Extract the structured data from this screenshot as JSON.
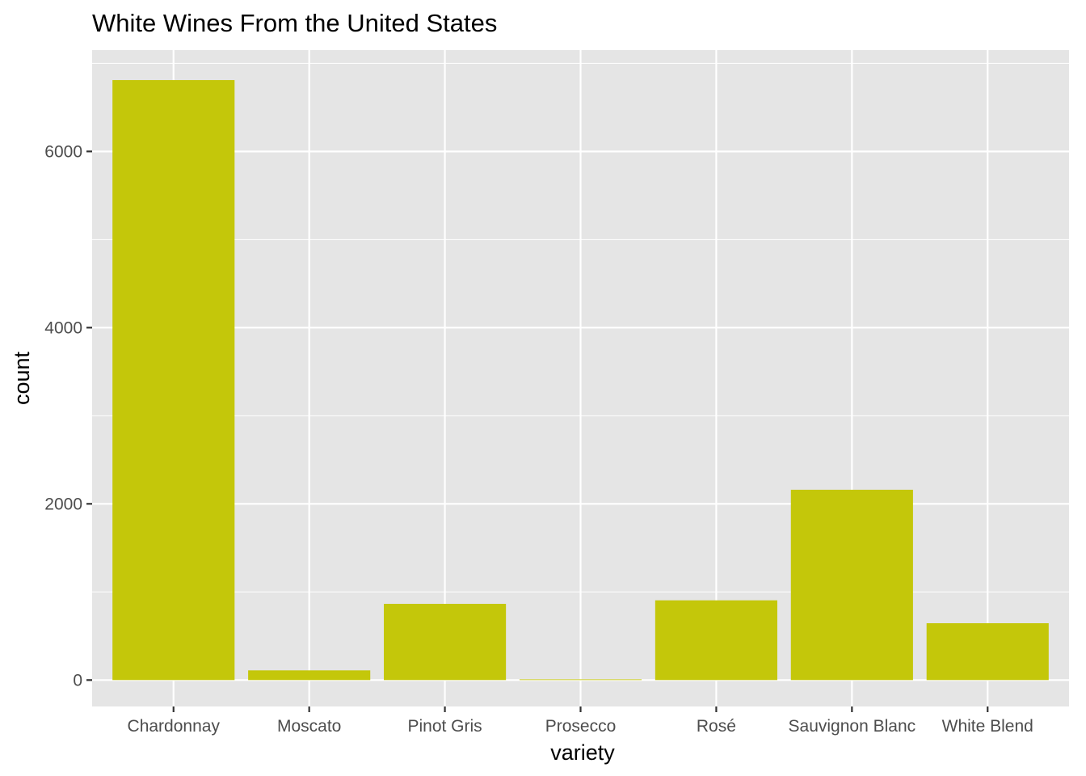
{
  "chart_data": {
    "type": "bar",
    "title": "White Wines From the United States",
    "xlabel": "variety",
    "ylabel": "count",
    "categories": [
      "Chardonnay",
      "Moscato",
      "Pinot Gris",
      "Prosecco",
      "Rosé",
      "Sauvignon Blanc",
      "White Blend"
    ],
    "values": [
      6810,
      110,
      865,
      8,
      905,
      2160,
      645
    ],
    "ylim": [
      -300,
      7150
    ],
    "yticks": [
      0,
      2000,
      4000,
      6000
    ],
    "ytick_labels": [
      "0",
      "2000",
      "4000",
      "6000"
    ],
    "grid": true,
    "legend": "none",
    "colors": {
      "bar": "#c4c70a",
      "panel": "#e5e5e5",
      "grid": "#ffffff",
      "tick": "#333333",
      "tick_text": "#4d4d4d"
    }
  }
}
